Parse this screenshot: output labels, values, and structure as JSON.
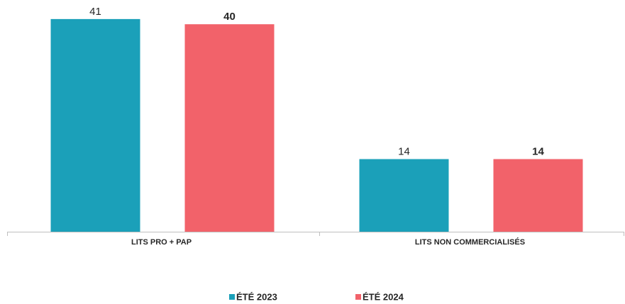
{
  "chart_data": {
    "type": "bar",
    "categories": [
      "LITS PRO + PAP",
      "LITS NON COMMERCIALISÉS"
    ],
    "series": [
      {
        "name": "ÉTÉ 2023",
        "color": "#1ba0b9",
        "values": [
          41,
          14
        ]
      },
      {
        "name": "ÉTÉ 2024",
        "color": "#f2626a",
        "values": [
          40,
          14
        ]
      }
    ],
    "legend": "bottom"
  }
}
